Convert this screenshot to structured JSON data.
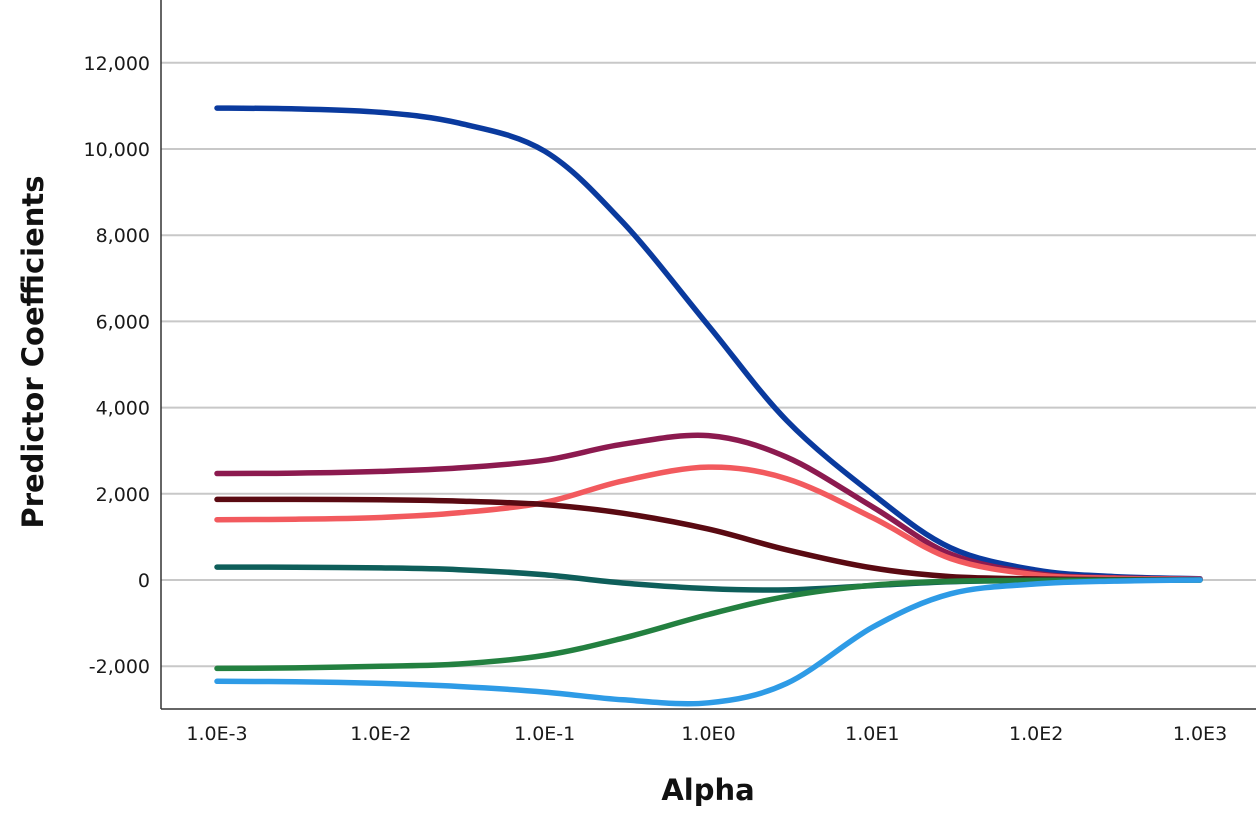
{
  "chart_data": {
    "type": "line",
    "xlabel": "Alpha",
    "ylabel": "Predictor Coefficients",
    "x_scale": "log",
    "x_ticks": [
      0.001,
      0.01,
      0.1,
      1,
      10,
      100,
      1000
    ],
    "x_tick_labels": [
      "1.0E-3",
      "1.0E-2",
      "1.0E-1",
      "1.0E0",
      "1.0E1",
      "1.0E2",
      "1.0E3"
    ],
    "xlim": [
      0.001,
      1000
    ],
    "ylim": [
      -3000,
      13500
    ],
    "y_ticks": [
      -2000,
      0,
      2000,
      4000,
      6000,
      8000,
      10000,
      12000
    ],
    "y_tick_labels": [
      "-2,000",
      "0",
      "2,000",
      "4,000",
      "6,000",
      "8,000",
      "10,000",
      "12,000"
    ],
    "grid": true,
    "legend": "none",
    "series": [
      {
        "color": "#0a3a9e",
        "x": [
          0.001,
          0.003,
          0.01,
          0.03,
          0.1,
          0.3,
          1,
          3,
          10,
          30,
          100,
          300,
          1000
        ],
        "values": [
          10950,
          10930,
          10850,
          10600,
          9950,
          8300,
          5900,
          3700,
          2000,
          750,
          230,
          80,
          30
        ]
      },
      {
        "color": "#8c1a4f",
        "x": [
          0.001,
          0.003,
          0.01,
          0.03,
          0.1,
          0.3,
          1,
          3,
          10,
          30,
          100,
          300,
          1000
        ],
        "values": [
          2470,
          2480,
          2520,
          2600,
          2780,
          3150,
          3350,
          2850,
          1700,
          600,
          150,
          50,
          20
        ]
      },
      {
        "color": "#f25a5e",
        "x": [
          0.001,
          0.003,
          0.01,
          0.03,
          0.1,
          0.3,
          1,
          3,
          10,
          30,
          100,
          300,
          1000
        ],
        "values": [
          1400,
          1410,
          1450,
          1560,
          1800,
          2300,
          2620,
          2350,
          1450,
          500,
          120,
          40,
          15
        ]
      },
      {
        "color": "#5a0a12",
        "x": [
          0.001,
          0.003,
          0.01,
          0.03,
          0.1,
          0.3,
          1,
          3,
          10,
          30,
          100,
          300,
          1000
        ],
        "values": [
          1870,
          1870,
          1860,
          1830,
          1750,
          1550,
          1180,
          700,
          280,
          80,
          25,
          10,
          5
        ]
      },
      {
        "color": "#0e5e5a",
        "x": [
          0.001,
          0.003,
          0.01,
          0.03,
          0.1,
          0.3,
          1,
          3,
          10,
          30,
          100,
          300,
          1000
        ],
        "values": [
          300,
          295,
          280,
          240,
          120,
          -70,
          -200,
          -230,
          -130,
          -40,
          -10,
          -5,
          0
        ]
      },
      {
        "color": "#238040",
        "x": [
          0.001,
          0.003,
          0.01,
          0.03,
          0.1,
          0.3,
          1,
          3,
          10,
          30,
          100,
          300,
          1000
        ],
        "values": [
          -2050,
          -2040,
          -2000,
          -1950,
          -1750,
          -1350,
          -800,
          -380,
          -120,
          -30,
          -10,
          -3,
          0
        ]
      },
      {
        "color": "#2e9be6",
        "x": [
          0.001,
          0.003,
          0.01,
          0.03,
          0.1,
          0.3,
          1,
          3,
          10,
          30,
          100,
          300,
          1000
        ],
        "values": [
          -2350,
          -2360,
          -2400,
          -2470,
          -2600,
          -2780,
          -2850,
          -2400,
          -1100,
          -320,
          -90,
          -25,
          0
        ]
      }
    ]
  }
}
